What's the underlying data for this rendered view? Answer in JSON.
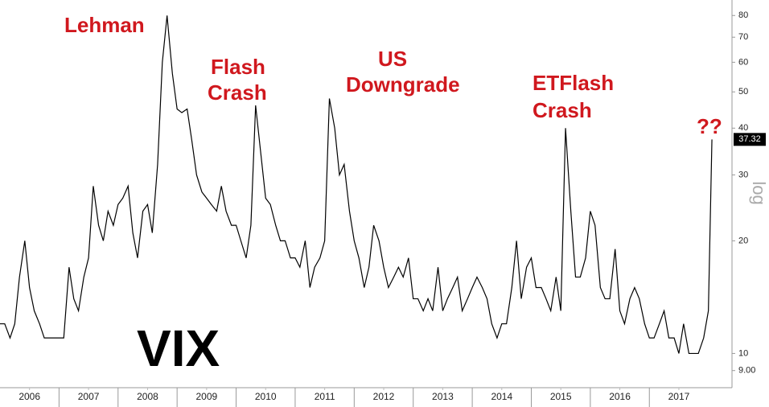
{
  "chart_data": {
    "type": "line",
    "scale": "log",
    "axis_note": "log",
    "annotations": [
      [
        "Lehman"
      ],
      [
        "Flash",
        "Crash"
      ],
      [
        "US",
        "Downgrade"
      ],
      [
        "ETFlash",
        "Crash"
      ],
      [
        "??"
      ]
    ],
    "last_value_label": "37.32",
    "xlim": [
      2006.0,
      2018.4
    ],
    "xticks": [
      {
        "value": 2006.5,
        "label": "2006"
      },
      {
        "value": 2007.5,
        "label": "2007"
      },
      {
        "value": 2008.5,
        "label": "2008"
      },
      {
        "value": 2009.5,
        "label": "2009"
      },
      {
        "value": 2010.5,
        "label": "2010"
      },
      {
        "value": 2011.5,
        "label": "2011"
      },
      {
        "value": 2012.5,
        "label": "2012"
      },
      {
        "value": 2013.5,
        "label": "2013"
      },
      {
        "value": 2014.5,
        "label": "2014"
      },
      {
        "value": 2015.5,
        "label": "2015"
      },
      {
        "value": 2016.5,
        "label": "2016"
      },
      {
        "value": 2017.5,
        "label": "2017"
      }
    ],
    "ylim": [
      8.1,
      88
    ],
    "yticks": [
      {
        "value": 9,
        "label": "9.00"
      },
      10,
      20,
      30,
      40,
      50,
      60,
      70,
      80
    ],
    "x": [
      2006.0,
      2006.08,
      2006.17,
      2006.25,
      2006.33,
      2006.42,
      2006.5,
      2006.58,
      2006.67,
      2006.75,
      2006.83,
      2006.92,
      2007.0,
      2007.08,
      2007.17,
      2007.25,
      2007.33,
      2007.42,
      2007.5,
      2007.58,
      2007.67,
      2007.75,
      2007.83,
      2007.92,
      2008.0,
      2008.08,
      2008.17,
      2008.25,
      2008.33,
      2008.42,
      2008.5,
      2008.58,
      2008.67,
      2008.75,
      2008.83,
      2008.92,
      2009.0,
      2009.08,
      2009.17,
      2009.25,
      2009.33,
      2009.42,
      2009.5,
      2009.58,
      2009.67,
      2009.75,
      2009.83,
      2009.92,
      2010.0,
      2010.08,
      2010.17,
      2010.25,
      2010.33,
      2010.42,
      2010.5,
      2010.58,
      2010.67,
      2010.75,
      2010.83,
      2010.92,
      2011.0,
      2011.08,
      2011.17,
      2011.25,
      2011.33,
      2011.42,
      2011.5,
      2011.58,
      2011.67,
      2011.75,
      2011.83,
      2011.92,
      2012.0,
      2012.08,
      2012.17,
      2012.25,
      2012.33,
      2012.42,
      2012.5,
      2012.58,
      2012.67,
      2012.75,
      2012.83,
      2012.92,
      2013.0,
      2013.08,
      2013.17,
      2013.25,
      2013.33,
      2013.42,
      2013.5,
      2013.58,
      2013.67,
      2013.75,
      2013.83,
      2013.92,
      2014.0,
      2014.08,
      2014.17,
      2014.25,
      2014.33,
      2014.42,
      2014.5,
      2014.58,
      2014.67,
      2014.75,
      2014.83,
      2014.92,
      2015.0,
      2015.08,
      2015.17,
      2015.25,
      2015.33,
      2015.42,
      2015.5,
      2015.58,
      2015.67,
      2015.75,
      2015.83,
      2015.92,
      2016.0,
      2016.08,
      2016.17,
      2016.25,
      2016.33,
      2016.42,
      2016.5,
      2016.58,
      2016.67,
      2016.75,
      2016.83,
      2016.92,
      2017.0,
      2017.08,
      2017.17,
      2017.25,
      2017.33,
      2017.42,
      2017.5,
      2017.58,
      2017.67,
      2017.75,
      2017.83,
      2017.92,
      2018.0,
      2018.06
    ],
    "series": [
      {
        "name": "VIX",
        "color": "#000000",
        "values": [
          12,
          12,
          11,
          12,
          16,
          20,
          15,
          13,
          12,
          11,
          11,
          11,
          11,
          11,
          17,
          14,
          13,
          16,
          18,
          28,
          22,
          20,
          24,
          22,
          25,
          26,
          28,
          21,
          18,
          24,
          25,
          21,
          32,
          60,
          80,
          56,
          45,
          44,
          45,
          37,
          30,
          27,
          26,
          25,
          24,
          28,
          24,
          22,
          22,
          20,
          18,
          22,
          46,
          34,
          26,
          25,
          22,
          20,
          20,
          18,
          18,
          17,
          20,
          15,
          17,
          18,
          20,
          48,
          40,
          30,
          32,
          24,
          20,
          18,
          15,
          17,
          22,
          20,
          17,
          15,
          16,
          17,
          16,
          18,
          14,
          14,
          13,
          14,
          13,
          17,
          13,
          14,
          15,
          16,
          13,
          14,
          15,
          16,
          15,
          14,
          12,
          11,
          12,
          12,
          15,
          20,
          14,
          17,
          18,
          15,
          15,
          14,
          13,
          16,
          13,
          40,
          24,
          16,
          16,
          18,
          24,
          22,
          15,
          14,
          14,
          19,
          13,
          12,
          14,
          15,
          14,
          12,
          11,
          11,
          12,
          13,
          11,
          11,
          10,
          12,
          10,
          10,
          10,
          11,
          13,
          37.32
        ]
      }
    ]
  }
}
